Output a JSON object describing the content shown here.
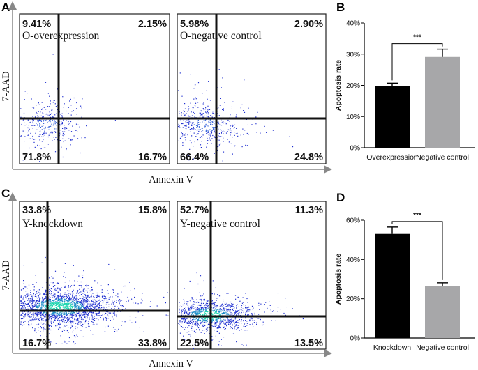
{
  "chart_data": [
    {
      "panel": "A",
      "type": "scatter",
      "xlabel": "Annexin V",
      "ylabel": "7-AAD",
      "plots": [
        {
          "title": "O-overexpression",
          "quadrants": {
            "upper_left": "9.41%",
            "upper_right": "2.15%",
            "lower_left": "71.8%",
            "lower_right": "16.7%"
          },
          "density": "sparse"
        },
        {
          "title": "O-negative control",
          "quadrants": {
            "upper_left": "5.98%",
            "upper_right": "2.90%",
            "lower_left": "66.4%",
            "lower_right": "24.8%"
          },
          "density": "sparse"
        }
      ]
    },
    {
      "panel": "B",
      "type": "bar",
      "categories": [
        "Overexpression",
        "Negative control"
      ],
      "values": [
        19.8,
        29.1
      ],
      "errors": [
        0.9,
        2.5
      ],
      "colors": [
        "#000000",
        "#a7a7a9"
      ],
      "ylabel": "Apoptosis rate",
      "ylim": [
        0,
        40
      ],
      "yticks": [
        "0%",
        "10%",
        "20%",
        "30%",
        "40%"
      ],
      "significance": "***"
    },
    {
      "panel": "C",
      "type": "scatter",
      "xlabel": "Annexin V",
      "ylabel": "7-AAD",
      "plots": [
        {
          "title": "Y-knockdown",
          "quadrants": {
            "upper_left": "33.8%",
            "upper_right": "15.8%",
            "lower_left": "16.7%",
            "lower_right": "33.8%"
          },
          "density": "dense"
        },
        {
          "title": "Y-negative control",
          "quadrants": {
            "upper_left": "52.7%",
            "upper_right": "11.3%",
            "lower_left": "22.5%",
            "lower_right": "13.5%"
          },
          "density": "medium"
        }
      ]
    },
    {
      "panel": "D",
      "type": "bar",
      "categories": [
        "Knockdown",
        "Negative control"
      ],
      "values": [
        53.0,
        26.5
      ],
      "errors": [
        3.5,
        1.6
      ],
      "colors": [
        "#000000",
        "#a7a7a9"
      ],
      "ylabel": "Apoptosis rate",
      "ylim": [
        0,
        60
      ],
      "yticks": [
        "0%",
        "20%",
        "40%",
        "60%"
      ],
      "significance": "***"
    }
  ]
}
